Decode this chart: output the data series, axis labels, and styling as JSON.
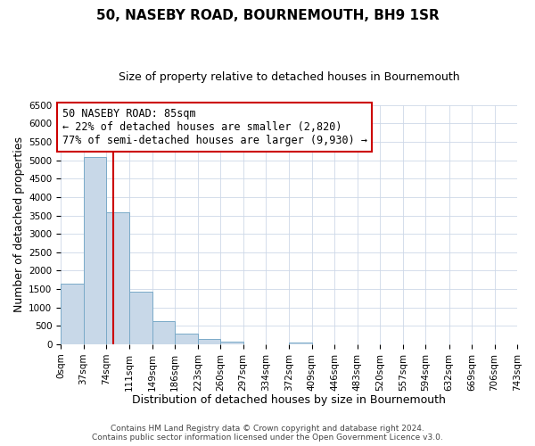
{
  "title": "50, NASEBY ROAD, BOURNEMOUTH, BH9 1SR",
  "subtitle": "Size of property relative to detached houses in Bournemouth",
  "xlabel": "Distribution of detached houses by size in Bournemouth",
  "ylabel": "Number of detached properties",
  "bin_edges": [
    0,
    37,
    74,
    111,
    149,
    186,
    223,
    260,
    297,
    334,
    372,
    409,
    446,
    483,
    520,
    557,
    594,
    632,
    669,
    706,
    743
  ],
  "bar_heights": [
    1650,
    5080,
    3590,
    1420,
    620,
    300,
    155,
    80,
    0,
    0,
    50,
    0,
    0,
    0,
    0,
    0,
    0,
    0,
    0,
    0
  ],
  "bar_color": "#c8d8e8",
  "bar_edge_color": "#7aaac8",
  "property_size": 85,
  "property_line_color": "#cc0000",
  "annotation_text": "50 NASEBY ROAD: 85sqm\n← 22% of detached houses are smaller (2,820)\n77% of semi-detached houses are larger (9,930) →",
  "annotation_box_color": "#ffffff",
  "annotation_box_edge_color": "#cc0000",
  "ylim": [
    0,
    6500
  ],
  "yticks": [
    0,
    500,
    1000,
    1500,
    2000,
    2500,
    3000,
    3500,
    4000,
    4500,
    5000,
    5500,
    6000,
    6500
  ],
  "tick_labels": [
    "0sqm",
    "37sqm",
    "74sqm",
    "111sqm",
    "149sqm",
    "186sqm",
    "223sqm",
    "260sqm",
    "297sqm",
    "334sqm",
    "372sqm",
    "409sqm",
    "446sqm",
    "483sqm",
    "520sqm",
    "557sqm",
    "594sqm",
    "632sqm",
    "669sqm",
    "706sqm",
    "743sqm"
  ],
  "footer_line1": "Contains HM Land Registry data © Crown copyright and database right 2024.",
  "footer_line2": "Contains public sector information licensed under the Open Government Licence v3.0.",
  "background_color": "#ffffff",
  "grid_color": "#cdd8e8",
  "title_fontsize": 11,
  "subtitle_fontsize": 9,
  "annotation_fontsize": 8.5,
  "axis_label_fontsize": 9,
  "tick_fontsize": 7.5,
  "footer_fontsize": 6.5
}
